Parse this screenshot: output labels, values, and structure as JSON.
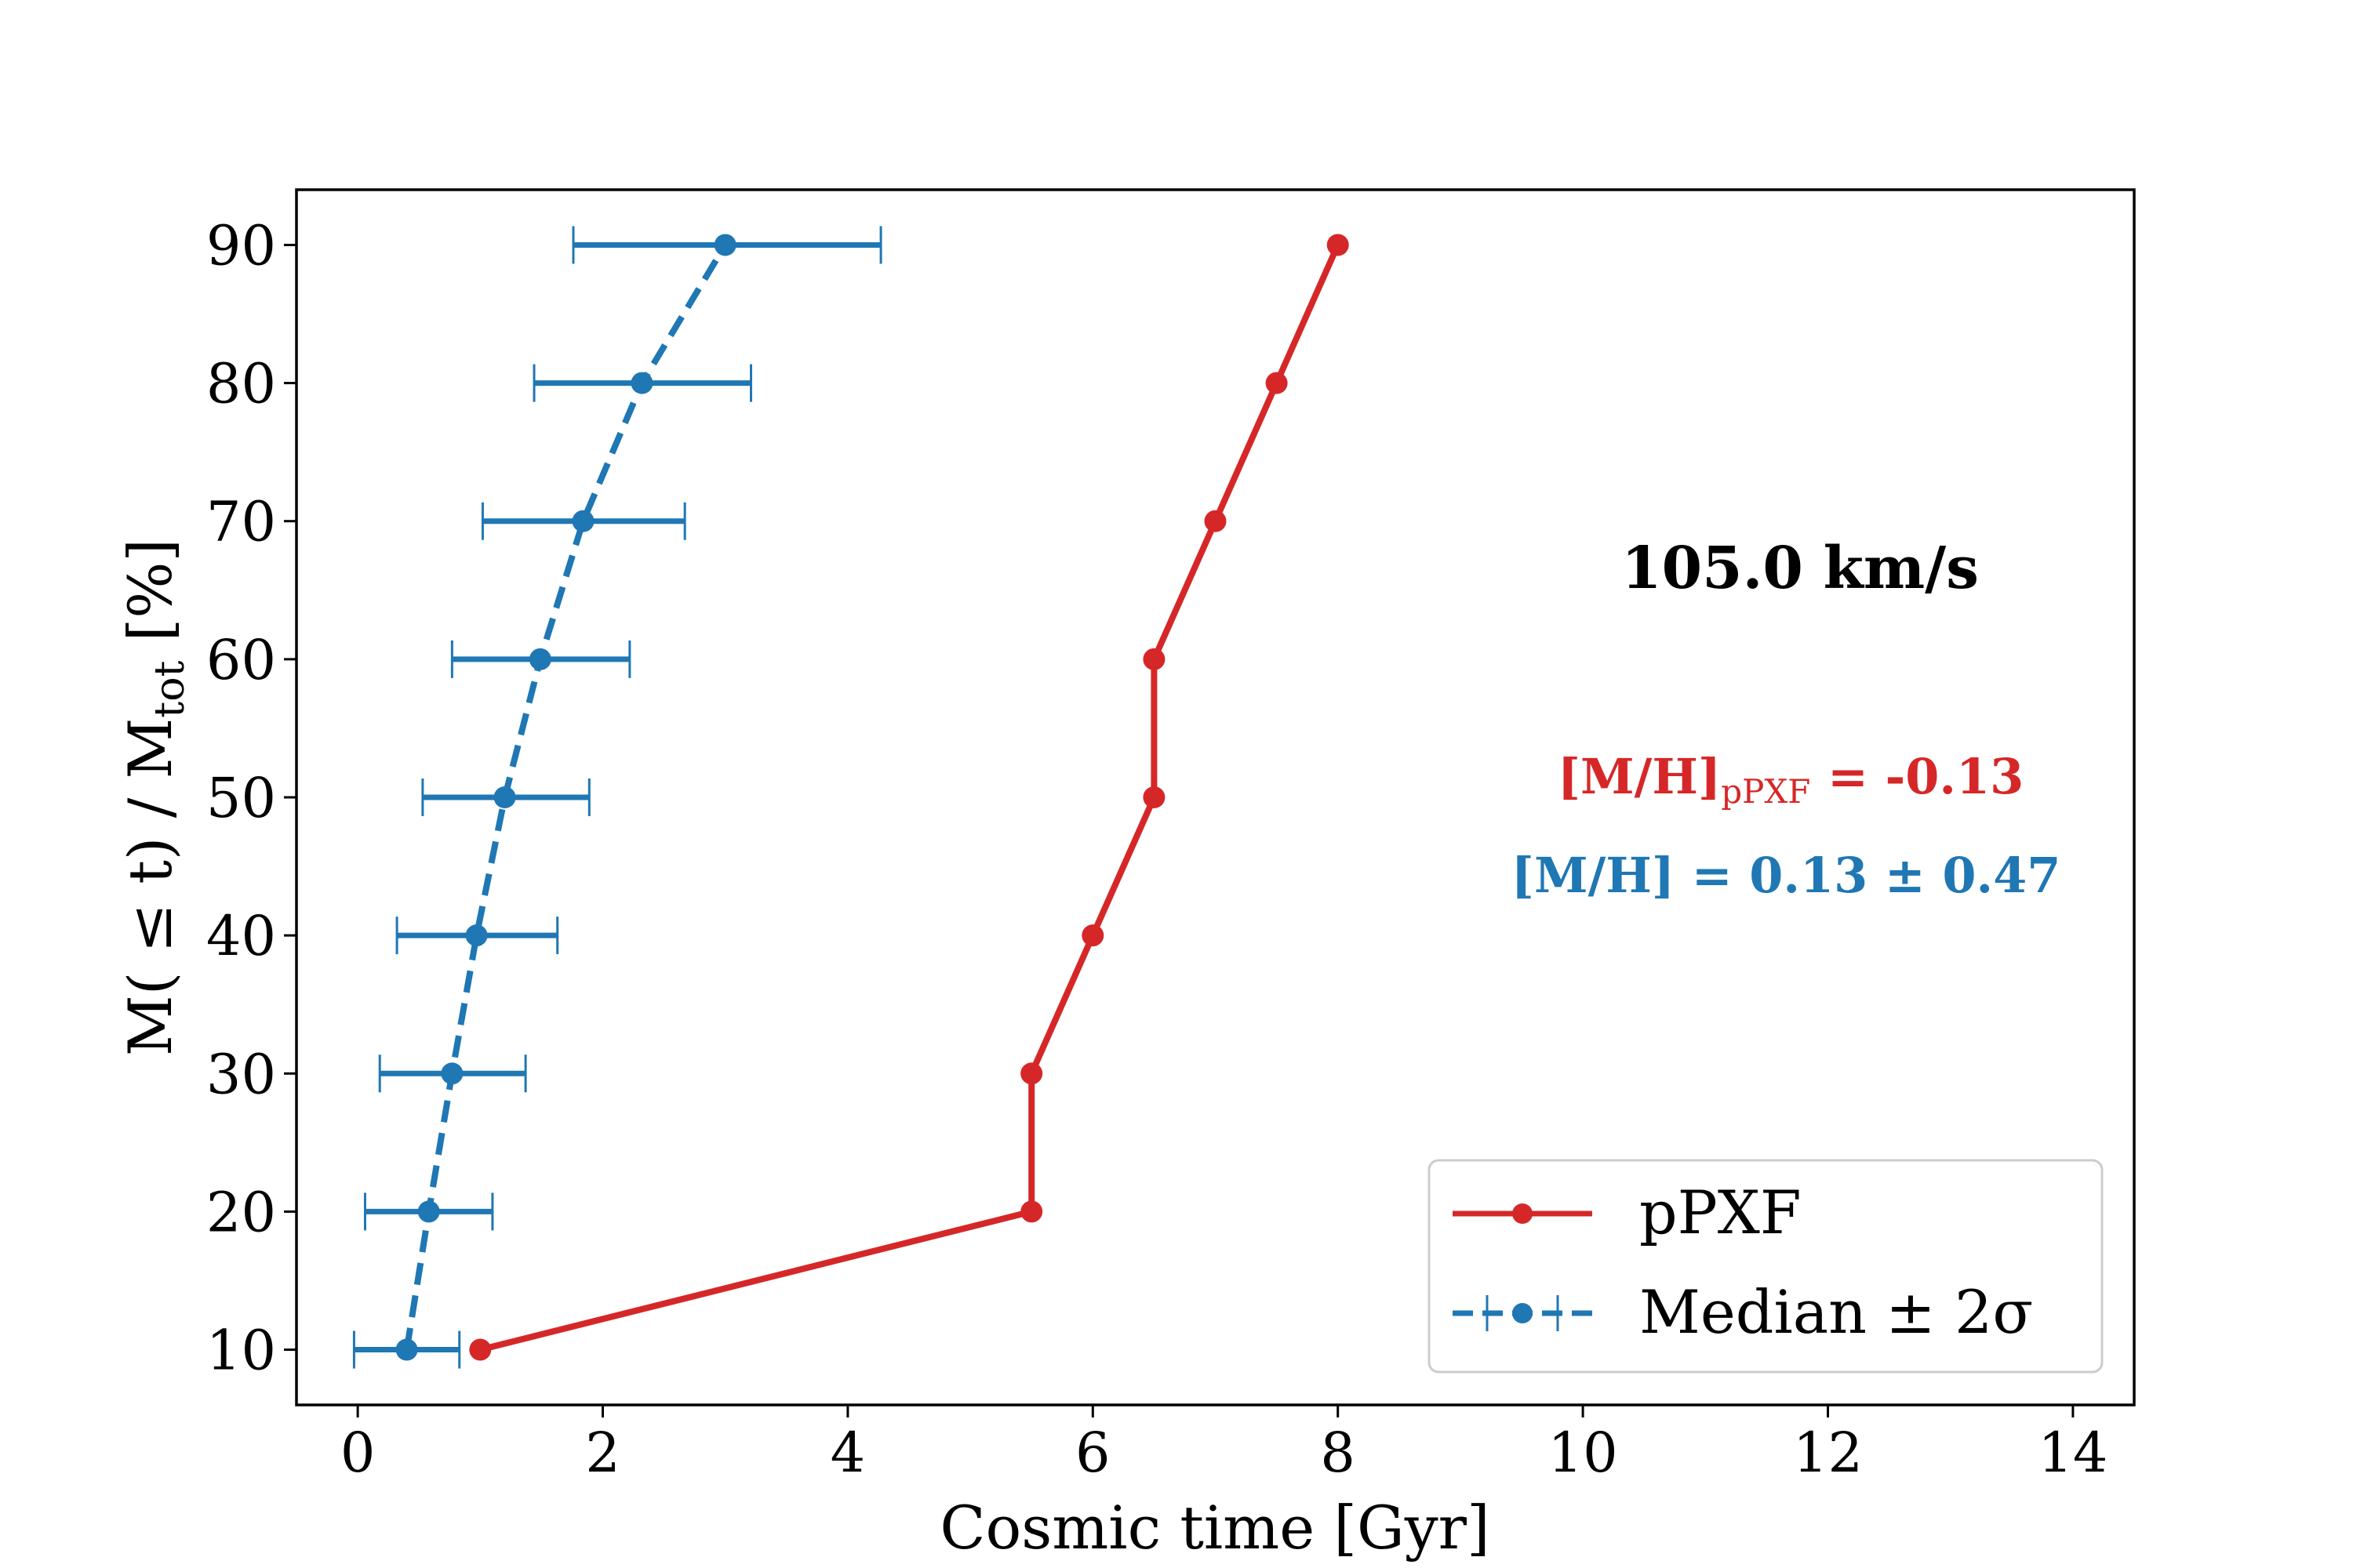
{
  "chart_data": {
    "type": "line",
    "xlabel": "Cosmic time [Gyr]",
    "ylabel_parts": {
      "main": "M( ≤ t) / M",
      "sub": "tot",
      "tail": " [%]"
    },
    "xlim": [
      -0.5,
      14.5
    ],
    "ylim": [
      6,
      94
    ],
    "xticks": [
      0,
      2,
      4,
      6,
      8,
      10,
      12,
      14
    ],
    "yticks": [
      10,
      20,
      30,
      40,
      50,
      60,
      70,
      80,
      90
    ],
    "grid": false,
    "legend": {
      "placement": "bottom-right",
      "entries": [
        {
          "label": "pPXF"
        },
        {
          "label": "Median ± 2σ"
        }
      ]
    },
    "series": [
      {
        "name": "pPXF",
        "color": "#d62728",
        "style": "solid",
        "x": [
          1.0,
          5.5,
          5.5,
          6.0,
          6.5,
          6.5,
          7.0,
          7.5,
          8.0
        ],
        "y": [
          10,
          20,
          30,
          40,
          50,
          60,
          70,
          80,
          90
        ]
      },
      {
        "name": "Median ± 2σ",
        "color": "#1f77b4",
        "style": "dashed",
        "x": [
          0.4,
          0.58,
          0.77,
          0.97,
          1.2,
          1.49,
          1.84,
          2.32,
          3.0
        ],
        "y": [
          10,
          20,
          30,
          40,
          50,
          60,
          70,
          80,
          90
        ],
        "xerr_low": [
          -0.03,
          0.06,
          0.18,
          0.32,
          0.53,
          0.77,
          1.02,
          1.44,
          1.76
        ],
        "xerr_high": [
          0.83,
          1.1,
          1.37,
          1.63,
          1.89,
          2.22,
          2.67,
          3.21,
          4.27
        ]
      }
    ],
    "annotations": {
      "velocity": "105.0 km/s",
      "mh_ppxf": {
        "main": "[M/H]",
        "sub": "pPXF",
        "tail": " = -0.13"
      },
      "mh_median": "[M/H] = 0.13 ± 0.47"
    }
  },
  "colors": {
    "ppxf": "#d62728",
    "median": "#1f77b4"
  }
}
